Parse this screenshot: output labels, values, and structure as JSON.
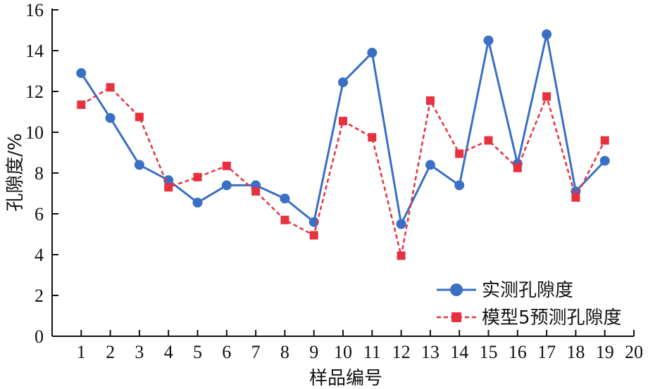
{
  "chart_data": {
    "type": "line",
    "xlabel": "样品编号",
    "ylabel": "孔隙度/%",
    "xlim": [
      0,
      20
    ],
    "ylim": [
      0,
      16
    ],
    "x_ticks": [
      1,
      2,
      3,
      4,
      5,
      6,
      7,
      8,
      9,
      10,
      11,
      12,
      13,
      14,
      15,
      16,
      17,
      18,
      19,
      20
    ],
    "y_ticks": [
      0,
      2,
      4,
      6,
      8,
      10,
      12,
      14,
      16
    ],
    "grid": false,
    "legend_position": "bottom-right",
    "x": [
      1,
      2,
      3,
      4,
      5,
      6,
      7,
      8,
      9,
      10,
      11,
      12,
      13,
      14,
      15,
      16,
      17,
      18,
      19
    ],
    "series": [
      {
        "name": "实测孔隙度",
        "color": "#3a6fc4",
        "line_style": "solid",
        "marker": "circle",
        "values": [
          12.9,
          10.7,
          8.4,
          7.65,
          6.55,
          7.4,
          7.4,
          6.75,
          5.6,
          12.45,
          13.9,
          5.5,
          8.4,
          7.4,
          14.5,
          8.45,
          14.8,
          7.1,
          8.6
        ]
      },
      {
        "name": "模型5预测孔隙度",
        "color": "#e8313f",
        "line_style": "dashed",
        "marker": "square",
        "values": [
          11.35,
          12.2,
          10.75,
          7.3,
          7.8,
          8.35,
          7.1,
          5.7,
          4.95,
          10.55,
          9.75,
          3.95,
          11.55,
          8.95,
          9.6,
          8.25,
          11.75,
          6.8,
          9.6
        ]
      }
    ]
  }
}
